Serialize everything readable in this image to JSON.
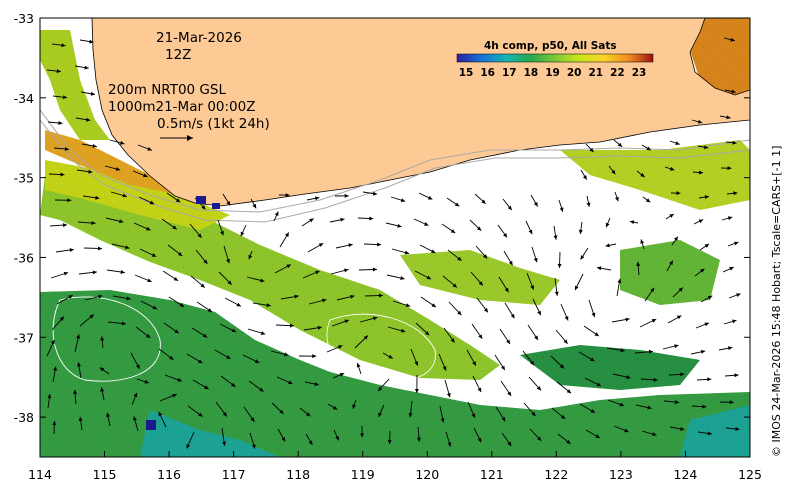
{
  "map": {
    "date": "21-Mar-2026",
    "hour": "12Z",
    "contour_label": "200m  NRT00 GSL",
    "contour_label_2": "1000m21-Mar 00:00Z",
    "velocity_scale": "0.5m/s (1kt 24h)",
    "colorbar_title": "4h comp, p50, All Sats",
    "colorbar_ticks": [
      "15",
      "16",
      "17",
      "18",
      "19",
      "20",
      "21",
      "22",
      "23"
    ],
    "credit": "© IMOS 24-Mar-2026 15:48 Hobart; Tscale=CARS+[-1 1]",
    "lon_ticks": [
      "114",
      "115",
      "116",
      "117",
      "118",
      "119",
      "120",
      "121",
      "122",
      "123",
      "124",
      "125"
    ],
    "lat_ticks": [
      "-33",
      "-34",
      "-35",
      "-36",
      "-37",
      "-38"
    ],
    "lon_range": [
      114,
      125
    ],
    "lat_range": [
      -38.5,
      -33
    ],
    "land_color": "#fdc995",
    "colormap": [
      "#2b1e9c",
      "#1670d8",
      "#14b4b4",
      "#2aa84a",
      "#7cc83a",
      "#c8e61a",
      "#fad528",
      "#f08a1e",
      "#9c1414"
    ]
  }
}
